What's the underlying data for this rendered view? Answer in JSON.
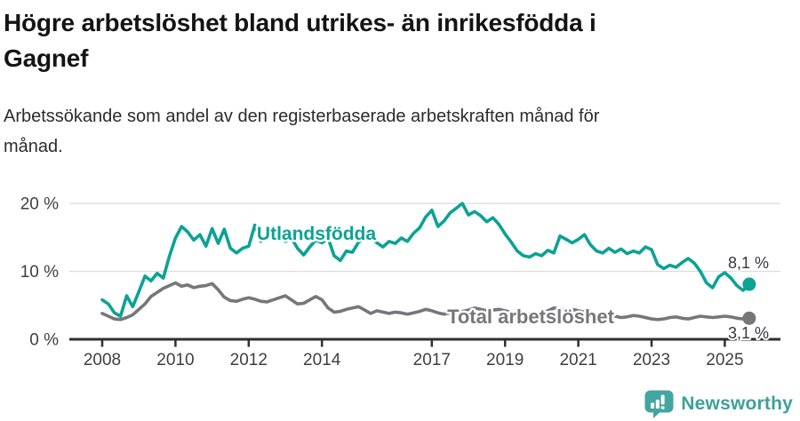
{
  "chart_data": {
    "type": "line",
    "title_lines": [
      "Högre arbetslöshet bland utrikes- än inrikesfödda i",
      "Gagnef"
    ],
    "subtitle_lines": [
      "Arbetssökande som andel av den registerbaserade arbetskraften månad för",
      "månad."
    ],
    "x_start": 2008.0,
    "x_step_years": 0.1666667,
    "xlim": [
      2007.1,
      2026.5
    ],
    "ylim": [
      0,
      21.5
    ],
    "grid": "horizontal",
    "legend_position": "inline-labels",
    "y_ticks": [
      {
        "value": 0,
        "label": "0 %"
      },
      {
        "value": 10,
        "label": "10 %"
      },
      {
        "value": 20,
        "label": "20 %"
      }
    ],
    "x_ticks": [
      {
        "value": 2008,
        "label": "2008"
      },
      {
        "value": 2010,
        "label": "2010"
      },
      {
        "value": 2012,
        "label": "2012"
      },
      {
        "value": 2014,
        "label": "2014"
      },
      {
        "value": 2017,
        "label": "2017"
      },
      {
        "value": 2019,
        "label": "2019"
      },
      {
        "value": 2021,
        "label": "2021"
      },
      {
        "value": 2023,
        "label": "2023"
      },
      {
        "value": 2025,
        "label": "2025"
      }
    ],
    "series": [
      {
        "name": "Utlandsfödda",
        "color": "#0ca294",
        "end_value": 8.1,
        "end_label": "8,1 %",
        "values": [
          5.8,
          5.2,
          3.9,
          3.4,
          6.4,
          4.8,
          7.0,
          9.3,
          8.6,
          9.7,
          9.0,
          12.2,
          14.9,
          16.6,
          15.8,
          14.6,
          15.4,
          13.7,
          16.3,
          14.1,
          16.2,
          13.4,
          12.7,
          13.4,
          13.7,
          16.8,
          14.4,
          15.4,
          14.8,
          15.2,
          14.4,
          14.9,
          13.4,
          12.4,
          13.6,
          14.6,
          14.2,
          14.9,
          12.3,
          11.6,
          13.0,
          12.8,
          14.3,
          14.8,
          15.3,
          14.2,
          13.6,
          14.4,
          14.1,
          14.9,
          14.4,
          15.6,
          16.4,
          18.0,
          19.0,
          16.6,
          17.4,
          18.6,
          19.3,
          20.0,
          18.3,
          18.8,
          18.2,
          17.3,
          17.9,
          16.9,
          15.5,
          14.3,
          13.0,
          12.3,
          12.1,
          12.6,
          12.3,
          13.1,
          12.7,
          15.2,
          14.7,
          14.2,
          14.7,
          15.4,
          13.9,
          13.0,
          12.7,
          13.4,
          12.8,
          13.3,
          12.6,
          13.0,
          12.7,
          13.6,
          13.2,
          11.0,
          10.4,
          10.9,
          10.6,
          11.3,
          11.9,
          11.2,
          10.0,
          8.3,
          7.6,
          9.2,
          9.8,
          9.0,
          7.9,
          7.2,
          8.1
        ]
      },
      {
        "name": "Total arbetslöshet",
        "color": "#76767b",
        "end_value": 3.1,
        "end_label": "3,1 %",
        "values": [
          3.8,
          3.4,
          3.0,
          2.9,
          3.2,
          3.6,
          4.4,
          5.2,
          6.3,
          6.9,
          7.5,
          7.9,
          8.3,
          7.8,
          8.0,
          7.6,
          7.8,
          7.9,
          8.2,
          7.3,
          6.2,
          5.7,
          5.6,
          5.9,
          6.1,
          5.9,
          5.6,
          5.5,
          5.8,
          6.1,
          6.4,
          5.8,
          5.2,
          5.3,
          5.8,
          6.3,
          5.8,
          4.6,
          4.0,
          4.1,
          4.4,
          4.6,
          4.8,
          4.3,
          3.8,
          4.2,
          4.0,
          3.8,
          4.0,
          3.9,
          3.7,
          3.9,
          4.1,
          4.4,
          4.2,
          3.9,
          3.7,
          3.9,
          4.0,
          4.1,
          4.3,
          4.6,
          4.4,
          4.2,
          4.3,
          4.4,
          4.2,
          4.0,
          3.8,
          3.9,
          3.7,
          3.6,
          3.8,
          4.2,
          4.6,
          4.5,
          4.3,
          4.4,
          4.2,
          4.0,
          3.8,
          3.6,
          3.5,
          3.6,
          3.4,
          3.2,
          3.3,
          3.5,
          3.4,
          3.2,
          3.0,
          2.9,
          3.0,
          3.2,
          3.3,
          3.1,
          3.0,
          3.2,
          3.4,
          3.3,
          3.2,
          3.3,
          3.4,
          3.3,
          3.1,
          3.0,
          3.1
        ]
      }
    ]
  },
  "footer": {
    "brand": "Newsworthy",
    "brand_color": "#3da09c",
    "icon_color": "#43a5a1"
  }
}
